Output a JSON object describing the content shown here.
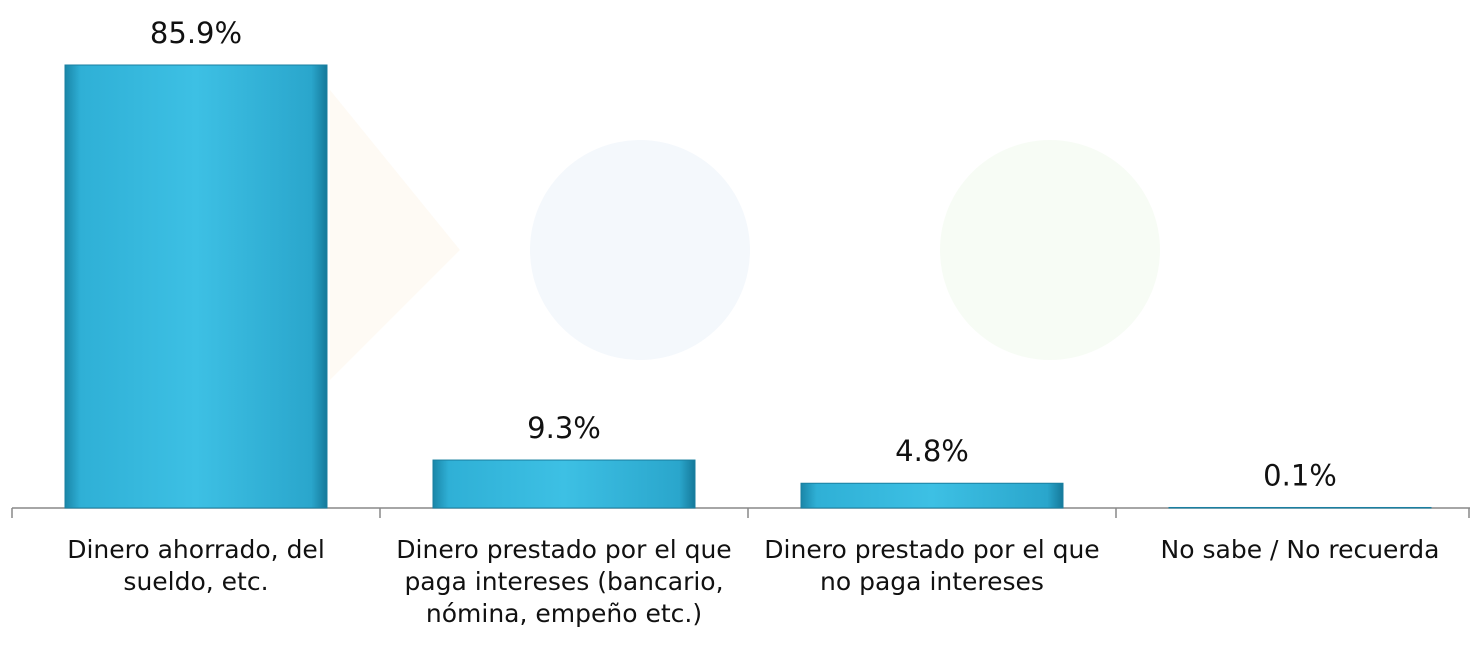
{
  "chart_data": {
    "type": "bar",
    "categories": [
      "Dinero ahorrado, del sueldo, etc.",
      "Dinero prestado por el que paga intereses (bancario, nómina, empeño etc.)",
      "Dinero prestado por el que no paga intereses",
      "No sabe / No recuerda"
    ],
    "values": [
      85.9,
      9.3,
      4.8,
      0.1
    ],
    "value_labels": [
      "85.9%",
      "9.3%",
      "4.8%",
      "0.1%"
    ],
    "color": "#33b5d9"
  }
}
